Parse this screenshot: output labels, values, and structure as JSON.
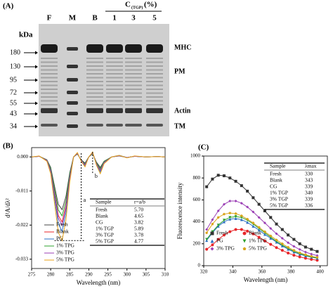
{
  "gel": {
    "panel_label": "(A)",
    "lanes": [
      "F",
      "M",
      "B",
      "1",
      "3",
      "5"
    ],
    "group_label": "C",
    "group_sub": "(TGP)",
    "group_unit": "(%)",
    "unit": "kDa",
    "markers": [
      "180",
      "130",
      "95",
      "72",
      "55",
      "43",
      "34"
    ],
    "bands": [
      "MHC",
      "PM",
      "Actin",
      "TM"
    ]
  },
  "chart_data": [
    {
      "type": "line",
      "panel_label": "(B)",
      "xlabel": "Wavelength (nm)",
      "ylabel": "d²A/dλ²",
      "x": [
        275,
        277,
        279,
        280,
        281,
        282,
        283,
        284,
        285,
        286,
        287,
        288,
        289,
        290,
        291,
        292,
        293,
        294,
        296,
        298,
        300,
        302,
        305,
        308,
        310
      ],
      "xlim": [
        275,
        310
      ],
      "xticks": [
        275,
        280,
        285,
        290,
        295,
        300,
        305,
        310
      ],
      "ylim": [
        -0.036,
        0.003
      ],
      "yticks": [
        {
          "value": 0,
          "label": "0.000"
        },
        {
          "value": -0.011,
          "label": "-0.011"
        },
        {
          "value": -0.022,
          "label": "-0.022"
        },
        {
          "value": -0.033,
          "label": "-0.033"
        }
      ],
      "legend": "lower left",
      "annotations": [
        "a",
        "b"
      ],
      "series": [
        {
          "name": "Fresh",
          "color": "#444444",
          "values": [
            0,
            0.0002,
            -0.0009,
            -0.0034,
            -0.0094,
            -0.0153,
            -0.017,
            -0.0128,
            -0.0051,
            0,
            0.0009,
            -0.0009,
            -0.002,
            0,
            0.001,
            -0.0017,
            -0.0034,
            -0.0014,
            0,
            0.0003,
            -0.0002,
            0.0002,
            0,
            0.0001,
            0
          ]
        },
        {
          "name": "Blank",
          "color": "#e8262a",
          "values": [
            0,
            0.0002,
            -0.0011,
            -0.0042,
            -0.0116,
            -0.0189,
            -0.021,
            -0.0158,
            -0.0063,
            0,
            0.0011,
            -0.0011,
            -0.0025,
            0,
            0.0013,
            -0.0021,
            -0.0042,
            -0.0017,
            0,
            0.0004,
            -0.0002,
            0.0002,
            0,
            0.0001,
            0
          ]
        },
        {
          "name": "PG",
          "color": "#2b6fc4",
          "values": [
            0,
            0.0002,
            -0.0012,
            -0.0048,
            -0.0132,
            -0.0216,
            -0.024,
            -0.018,
            -0.0072,
            0,
            0.0012,
            -0.0012,
            -0.0029,
            0,
            0.0014,
            -0.0024,
            -0.0048,
            -0.0019,
            0,
            0.0005,
            -0.0002,
            0.0002,
            0,
            0.0001,
            0
          ]
        },
        {
          "name": "1% TPG",
          "color": "#2ca02c",
          "values": [
            0,
            0.0002,
            -0.001,
            -0.0038,
            -0.0105,
            -0.0171,
            -0.019,
            -0.0143,
            -0.0057,
            0,
            0.001,
            -0.001,
            -0.0023,
            0,
            0.0011,
            -0.0019,
            -0.0038,
            -0.0015,
            0,
            0.0004,
            -0.0002,
            0.0002,
            0,
            0.0001,
            0
          ]
        },
        {
          "name": "3% TPG",
          "color": "#9b3fb5",
          "values": [
            0,
            0.0002,
            -0.0011,
            -0.0044,
            -0.0121,
            -0.0198,
            -0.022,
            -0.0165,
            -0.0066,
            0,
            0.0011,
            -0.0011,
            -0.0026,
            0,
            0.0013,
            -0.0022,
            -0.0044,
            -0.0018,
            0,
            0.0004,
            -0.0002,
            0.0002,
            0,
            0.0001,
            0
          ]
        },
        {
          "name": "5% TPG",
          "color": "#e8a317",
          "values": [
            0,
            0.0003,
            -0.0014,
            -0.0054,
            -0.0149,
            -0.0243,
            -0.027,
            -0.0203,
            -0.0081,
            0,
            0.0014,
            -0.0014,
            -0.0032,
            0,
            0.0016,
            -0.0027,
            -0.0054,
            -0.0022,
            0,
            0.0005,
            -0.0003,
            0.0003,
            0,
            0.0001,
            0
          ]
        }
      ],
      "table": {
        "columns": [
          "Sample",
          "r=a/b"
        ],
        "rows": [
          [
            "Fresh",
            "5.70"
          ],
          [
            "Blank",
            "4.65"
          ],
          [
            "CG",
            "3.82"
          ],
          [
            "1% TGP",
            "5.89"
          ],
          [
            "3% TGP",
            "3.78"
          ],
          [
            "5% TGP",
            "4.77"
          ]
        ]
      }
    },
    {
      "type": "line",
      "panel_label": "(C)",
      "xlabel": "Wavelength (nm)",
      "ylabel": "Fluorescence intensity",
      "x": [
        322,
        326,
        330,
        334,
        338,
        342,
        346,
        350,
        354,
        358,
        362,
        366,
        370,
        374,
        378,
        382,
        386,
        390,
        394,
        398
      ],
      "xlim": [
        320,
        405
      ],
      "xticks": [
        320,
        340,
        360,
        380,
        400
      ],
      "ylim": [
        0,
        1000
      ],
      "yticks": [
        0,
        200,
        400,
        600,
        800,
        1000
      ],
      "legend": "lower left",
      "series": [
        {
          "name": "Fresh",
          "color": "#333333",
          "marker": "square",
          "values": [
            720,
            790,
            825,
            820,
            800,
            770,
            730,
            680,
            620,
            560,
            500,
            440,
            380,
            330,
            280,
            240,
            200,
            170,
            150,
            130
          ]
        },
        {
          "name": "Blank",
          "color": "#e8262a",
          "marker": "circle",
          "values": [
            150,
            190,
            240,
            280,
            310,
            330,
            330,
            315,
            290,
            260,
            225,
            195,
            165,
            140,
            115,
            95,
            80,
            68,
            58,
            50
          ]
        },
        {
          "name": "PG",
          "color": "#2b6fc4",
          "marker": "triangle",
          "values": [
            230,
            300,
            360,
            400,
            425,
            430,
            420,
            395,
            360,
            325,
            285,
            250,
            215,
            180,
            150,
            125,
            105,
            90,
            78,
            68
          ]
        },
        {
          "name": "1% TPG",
          "color": "#2ca02c",
          "marker": "triangle-down",
          "values": [
            240,
            310,
            370,
            415,
            440,
            448,
            440,
            415,
            380,
            340,
            300,
            260,
            222,
            188,
            158,
            130,
            110,
            94,
            80,
            70
          ]
        },
        {
          "name": "3% TPG",
          "color": "#9b3fb5",
          "marker": "diamond",
          "values": [
            330,
            420,
            500,
            560,
            590,
            590,
            570,
            535,
            490,
            440,
            390,
            340,
            292,
            250,
            210,
            176,
            148,
            124,
            106,
            92
          ]
        },
        {
          "name": "5% TPG",
          "color": "#d9a51c",
          "marker": "pentagon",
          "values": [
            300,
            380,
            440,
            470,
            480,
            475,
            455,
            425,
            390,
            350,
            310,
            272,
            235,
            200,
            168,
            140,
            118,
            100,
            86,
            76
          ]
        }
      ],
      "table": {
        "columns": [
          "Sample",
          "λmax"
        ],
        "rows": [
          [
            "Fresh",
            "330"
          ],
          [
            "Blank",
            "343"
          ],
          [
            "CG",
            "339"
          ],
          [
            "1% TGP",
            "340"
          ],
          [
            "3% TGP",
            "339"
          ],
          [
            "5% TGP",
            "336"
          ]
        ]
      }
    }
  ]
}
